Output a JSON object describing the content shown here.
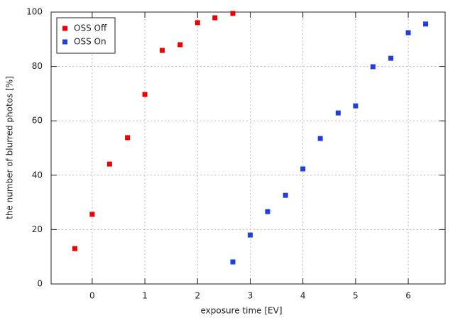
{
  "chart_data": {
    "type": "scatter",
    "xlabel": "exposure time [EV]",
    "ylabel": "the number of blurred photos [%]",
    "xlim": [
      -0.78,
      6.7
    ],
    "ylim": [
      0,
      100
    ],
    "xticks": [
      0,
      1,
      2,
      3,
      4,
      5,
      6
    ],
    "yticks": [
      0,
      20,
      40,
      60,
      80,
      100
    ],
    "grid": true,
    "legend": "upper left",
    "series": [
      {
        "name": "OSS Off",
        "color": "#ee0000",
        "x": [
          -0.33,
          0,
          0.33,
          0.67,
          1,
          1.33,
          1.67,
          2,
          2.33,
          2.67
        ],
        "values": [
          13,
          25.6,
          44.1,
          53.8,
          69.7,
          85.9,
          88,
          96.1,
          97.9,
          99.5
        ]
      },
      {
        "name": "OSS On",
        "color": "#2040dd",
        "x": [
          2.67,
          3,
          3.33,
          3.67,
          4,
          4.33,
          4.67,
          5,
          5.33,
          5.67,
          6,
          6.33
        ],
        "values": [
          8.1,
          18,
          26.6,
          32.6,
          42.3,
          53.5,
          62.9,
          65.5,
          79.9,
          83,
          92.4,
          95.6
        ]
      }
    ]
  }
}
